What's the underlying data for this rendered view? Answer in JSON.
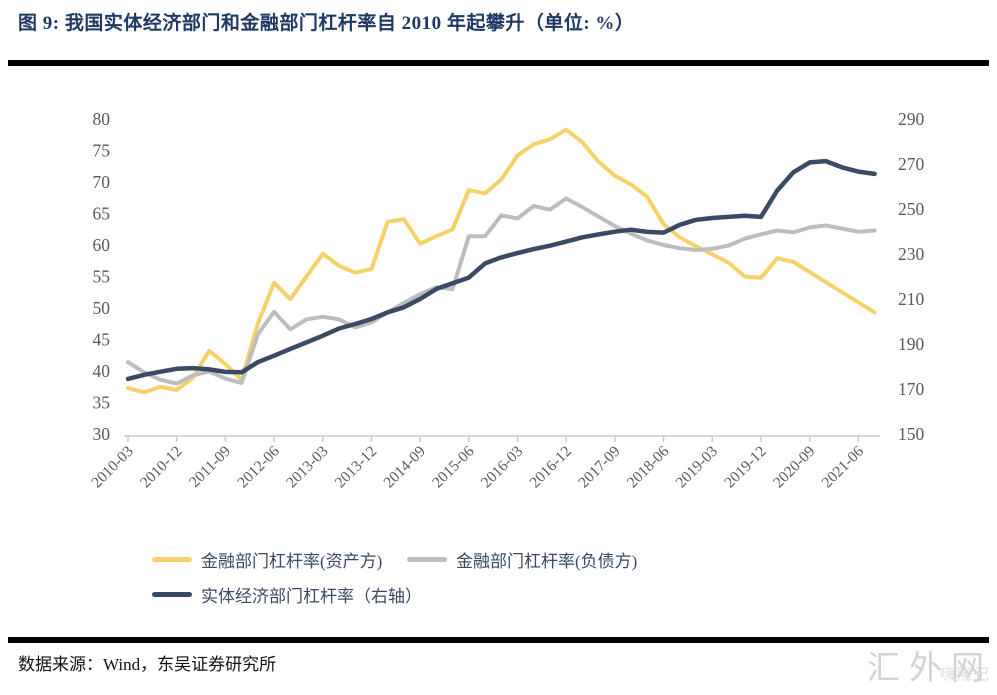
{
  "title": "图 9:  我国实体经济部门和金融部门杠杆率自 2010 年起攀升（单位:  %）",
  "source": "数据来源：Wind，东吴证券研究所",
  "watermark": {
    "main": "汇外网",
    "sub": "嗨隆记"
  },
  "colors": {
    "title": "#1F3864",
    "axis_text": "#595959",
    "axis_line": "#cccccc",
    "series_assets": "#F4D169",
    "series_liabilities": "#BCBEBE",
    "series_real_economy": "#3B4A63",
    "rule": "#000000"
  },
  "legend": [
    {
      "label": "金融部门杠杆率(资产方)",
      "color": "#F4D169"
    },
    {
      "label": "金融部门杠杆率(负债方)",
      "color": "#BCBEBE"
    },
    {
      "label": "实体经济部门杠杆率（右轴）",
      "color": "#3B4A63"
    }
  ],
  "chart_data": {
    "type": "line",
    "title": "我国实体经济部门和金融部门杠杆率自2010年起攀升",
    "unit": "%",
    "grid": false,
    "legend_position": "bottom",
    "x": [
      "2010-03",
      "2010-06",
      "2010-09",
      "2010-12",
      "2011-03",
      "2011-06",
      "2011-09",
      "2011-12",
      "2012-03",
      "2012-06",
      "2012-09",
      "2012-12",
      "2013-03",
      "2013-06",
      "2013-09",
      "2013-12",
      "2014-03",
      "2014-06",
      "2014-09",
      "2014-12",
      "2015-03",
      "2015-06",
      "2015-09",
      "2015-12",
      "2016-03",
      "2016-06",
      "2016-09",
      "2016-12",
      "2017-03",
      "2017-06",
      "2017-09",
      "2017-12",
      "2018-03",
      "2018-06",
      "2018-09",
      "2018-12",
      "2019-03",
      "2019-06",
      "2019-09",
      "2019-12",
      "2020-03",
      "2020-06",
      "2020-09",
      "2020-12",
      "2021-03",
      "2021-06",
      "2021-09"
    ],
    "x_tick_labels": [
      "2010-03",
      "2010-12",
      "2011-09",
      "2012-06",
      "2013-03",
      "2013-12",
      "2014-09",
      "2015-06",
      "2016-03",
      "2016-12",
      "2017-09",
      "2018-06",
      "2019-03",
      "2019-12",
      "2020-09",
      "2021-06"
    ],
    "tick_every": 3,
    "left_axis": {
      "min": 30,
      "max": 80,
      "step": 5,
      "ticks": [
        80,
        75,
        70,
        65,
        60,
        55,
        50,
        45,
        40,
        35,
        30
      ]
    },
    "right_axis": {
      "min": 150,
      "max": 290,
      "step": 20,
      "ticks": [
        290,
        270,
        250,
        230,
        210,
        190,
        170,
        150
      ]
    },
    "series": [
      {
        "name": "金融部门杠杆率(资产方)",
        "axis": "left",
        "color": "#F4D169",
        "width": 4,
        "values": [
          37.3,
          36.6,
          37.5,
          37.0,
          38.9,
          43.2,
          41.1,
          38.6,
          47.5,
          54.0,
          51.4,
          55.0,
          58.6,
          56.7,
          55.6,
          56.2,
          63.7,
          64.1,
          60.2,
          61.4,
          62.5,
          68.7,
          68.2,
          70.4,
          74.2,
          76.0,
          76.8,
          78.3,
          76.3,
          73.2,
          71.0,
          69.6,
          67.6,
          63.3,
          61.2,
          59.8,
          58.5,
          57.2,
          55.0,
          54.8,
          57.9,
          57.3,
          55.7,
          54.1,
          52.5,
          50.9,
          49.3
        ]
      },
      {
        "name": "金融部门杠杆率(负债方)",
        "axis": "left",
        "color": "#BCBEBE",
        "width": 4,
        "values": [
          41.4,
          39.8,
          38.6,
          38.0,
          39.3,
          39.9,
          38.8,
          38.1,
          45.8,
          49.4,
          46.6,
          48.2,
          48.6,
          48.2,
          46.9,
          47.7,
          49.3,
          50.8,
          52.2,
          53.3,
          53.0,
          61.4,
          61.4,
          64.7,
          64.2,
          66.2,
          65.6,
          67.4,
          66.0,
          64.5,
          63.0,
          61.8,
          60.7,
          60.0,
          59.5,
          59.2,
          59.4,
          59.9,
          61.0,
          61.7,
          62.3,
          62.0,
          62.8,
          63.1,
          62.6,
          62.1,
          62.3
        ]
      },
      {
        "name": "实体经济部门杠杆率（右轴）",
        "axis": "right",
        "color": "#3B4A63",
        "width": 4.5,
        "values": [
          174.5,
          176.3,
          177.7,
          179.0,
          179.3,
          178.7,
          177.6,
          177.4,
          181.9,
          184.8,
          187.8,
          190.7,
          193.7,
          196.9,
          198.9,
          201.1,
          204.1,
          206.3,
          210.0,
          214.5,
          217.0,
          219.5,
          225.8,
          228.5,
          230.4,
          232.2,
          233.7,
          235.5,
          237.4,
          238.7,
          239.9,
          240.8,
          239.8,
          239.5,
          243.0,
          245.2,
          246.0,
          246.5,
          247.0,
          246.5,
          258.2,
          266.3,
          270.7,
          271.3,
          268.5,
          266.6,
          265.6
        ]
      }
    ]
  }
}
